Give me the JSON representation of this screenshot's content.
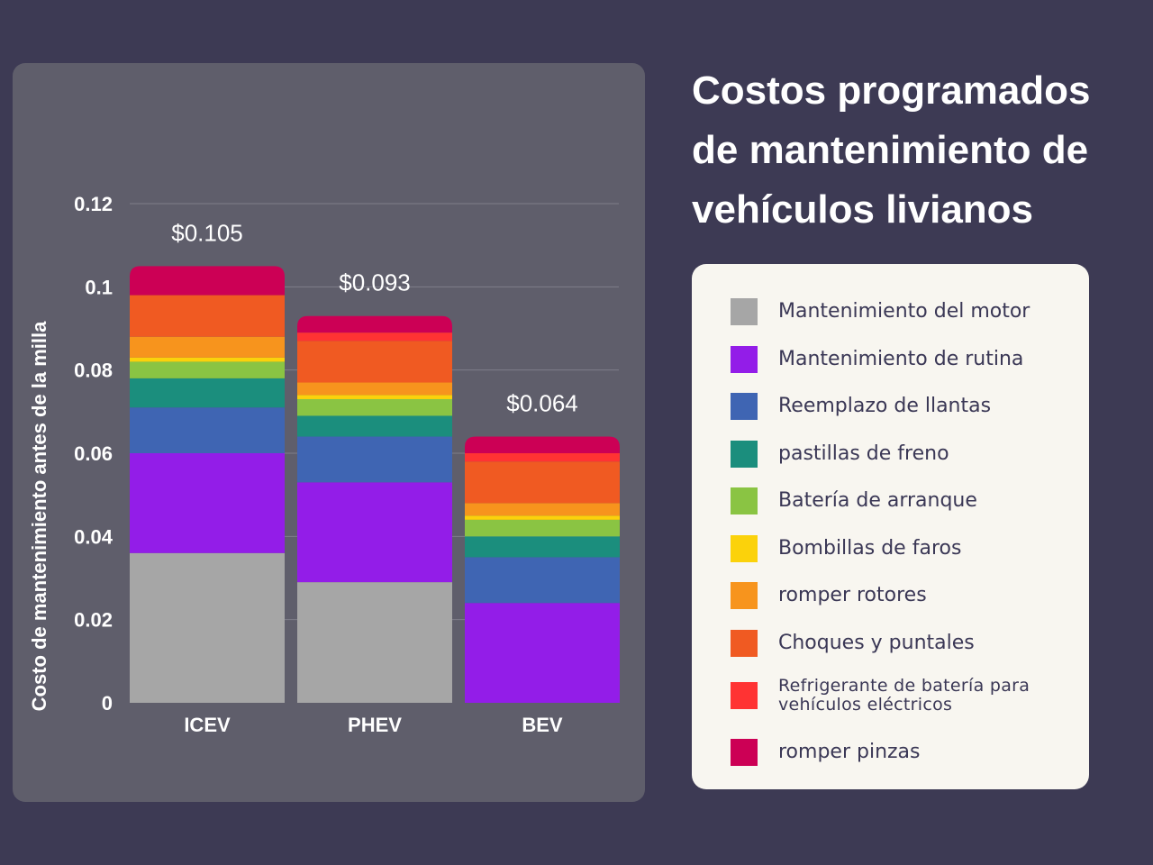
{
  "title": "Costos programados de mantenimiento de vehículos livianos",
  "colors": {
    "background": "#3d3a54",
    "panel": "#5f5e6b",
    "legend_bg": "#f8f6f0",
    "text_light": "#ffffff",
    "text_dark": "#3a3755"
  },
  "chart_data": {
    "type": "bar",
    "stacked": true,
    "categories": [
      "ICEV",
      "PHEV",
      "BEV"
    ],
    "ylabel": "Costo de mantenimiento antes de la milla",
    "xlabel": "",
    "ylim": [
      0,
      0.12
    ],
    "yticks": [
      0,
      0.02,
      0.04,
      0.06,
      0.08,
      0.1,
      0.12
    ],
    "ytick_labels": [
      "0",
      "0.02",
      "0.04",
      "0.06",
      "0.08",
      "0.1",
      "0.12"
    ],
    "grid": true,
    "totals": [
      0.105,
      0.093,
      0.064
    ],
    "total_labels": [
      "$0.105",
      "$0.093",
      "$0.064"
    ],
    "legend_position": "right",
    "series": [
      {
        "name": "Mantenimiento del motor",
        "color": "#a6a6a6",
        "values": [
          0.036,
          0.029,
          0.0
        ]
      },
      {
        "name": "Mantenimiento de rutina",
        "color": "#931de8",
        "values": [
          0.024,
          0.024,
          0.024
        ]
      },
      {
        "name": "Reemplazo de llantas",
        "color": "#3f65b3",
        "values": [
          0.011,
          0.011,
          0.011
        ]
      },
      {
        "name": "pastillas de freno",
        "color": "#1b8e7d",
        "values": [
          0.007,
          0.005,
          0.005
        ]
      },
      {
        "name": "Batería de arranque",
        "color": "#8ac443",
        "values": [
          0.004,
          0.004,
          0.004
        ]
      },
      {
        "name": "Bombillas de faros",
        "color": "#fbd20b",
        "values": [
          0.001,
          0.001,
          0.001
        ]
      },
      {
        "name": "romper rotores",
        "color": "#f7941d",
        "values": [
          0.005,
          0.003,
          0.003
        ]
      },
      {
        "name": "Choques y puntales",
        "color": "#f05a22",
        "values": [
          0.01,
          0.01,
          0.01
        ]
      },
      {
        "name": "Refrigerante de batería para vehículos eléctricos",
        "color": "#ff3333",
        "values": [
          0.0,
          0.002,
          0.002
        ]
      },
      {
        "name": "romper pinzas",
        "color": "#cc0055",
        "values": [
          0.007,
          0.004,
          0.004
        ]
      }
    ]
  }
}
